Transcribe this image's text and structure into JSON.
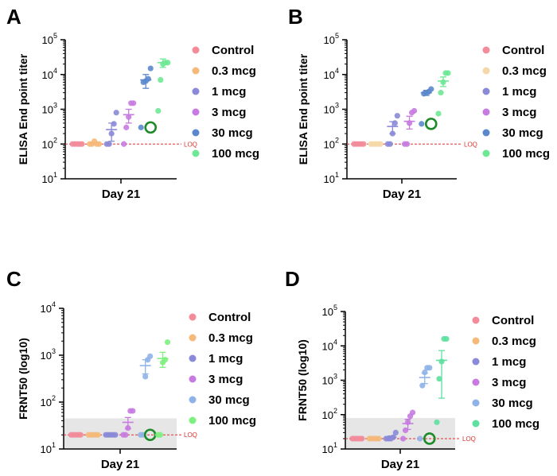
{
  "chart_data": [
    {
      "id": "A",
      "type": "scatter",
      "panel_label": "A",
      "ylabel": "ELISA End point titer",
      "xlabel": "Day 21",
      "yscale": "log",
      "ylim": [
        10,
        100000
      ],
      "y_ticks": [
        {
          "base": "10",
          "exp": "1",
          "value": 10
        },
        {
          "base": "10",
          "exp": "2",
          "value": 100
        },
        {
          "base": "10",
          "exp": "3",
          "value": 1000
        },
        {
          "base": "10",
          "exp": "4",
          "value": 10000
        },
        {
          "base": "10",
          "exp": "5",
          "value": 100000
        }
      ],
      "loq": {
        "value": 100,
        "label": "LOQ"
      },
      "shaded_region": null,
      "series": [
        {
          "name": "Control",
          "color": "#f28b9a",
          "points": [
            100,
            100,
            100,
            100,
            100
          ],
          "mean": 100,
          "sem": 0,
          "highlight": null
        },
        {
          "name": "0.3 mcg",
          "color": "#f5b97a",
          "points": [
            100,
            100,
            120,
            100,
            100
          ],
          "mean": 105,
          "sem": 5,
          "highlight": null
        },
        {
          "name": "1 mcg",
          "color": "#8a8ad8",
          "points": [
            100,
            100,
            200,
            380,
            800
          ],
          "mean": 260,
          "sem": 140,
          "highlight": null
        },
        {
          "name": "3 mcg",
          "color": "#c77be0",
          "points": [
            100,
            300,
            600,
            1500,
            1500
          ],
          "mean": 700,
          "sem": 300,
          "highlight": null
        },
        {
          "name": "30 mcg",
          "color": "#5b88cc",
          "points": [
            300,
            6000,
            6500,
            7500,
            15000
          ],
          "mean": 7000,
          "sem": 3000,
          "highlight": 300
        },
        {
          "name": "100 mcg",
          "color": "#6ee895",
          "points": [
            900,
            7000,
            20000,
            22000,
            22000
          ],
          "mean": 22000,
          "sem": 6000,
          "highlight": null
        }
      ]
    },
    {
      "id": "B",
      "type": "scatter",
      "panel_label": "B",
      "ylabel": "ELISA End point titer",
      "xlabel": "Day 21",
      "yscale": "log",
      "ylim": [
        10,
        100000
      ],
      "y_ticks": [
        {
          "base": "10",
          "exp": "1",
          "value": 10
        },
        {
          "base": "10",
          "exp": "2",
          "value": 100
        },
        {
          "base": "10",
          "exp": "3",
          "value": 1000
        },
        {
          "base": "10",
          "exp": "4",
          "value": 10000
        },
        {
          "base": "10",
          "exp": "5",
          "value": 100000
        }
      ],
      "loq": {
        "value": 100,
        "label": "LOQ"
      },
      "shaded_region": null,
      "series": [
        {
          "name": "Control",
          "color": "#f28b9a",
          "points": [
            100,
            100,
            100,
            100,
            100
          ],
          "mean": 100,
          "sem": 0,
          "highlight": null
        },
        {
          "name": "0.3 mcg",
          "color": "#f5d8a8",
          "points": [
            100,
            100,
            100,
            100,
            100
          ],
          "mean": 100,
          "sem": 0,
          "highlight": null
        },
        {
          "name": "1 mcg",
          "color": "#8a8ad8",
          "points": [
            100,
            100,
            200,
            400,
            650
          ],
          "mean": 320,
          "sem": 120,
          "highlight": null
        },
        {
          "name": "3 mcg",
          "color": "#c77be0",
          "points": [
            100,
            100,
            400,
            800,
            900
          ],
          "mean": 450,
          "sem": 180,
          "highlight": null
        },
        {
          "name": "30 mcg",
          "color": "#5b88cc",
          "points": [
            380,
            2800,
            3000,
            3200,
            3800
          ],
          "mean": 3000,
          "sem": 500,
          "highlight": 380
        },
        {
          "name": "100 mcg",
          "color": "#6ee895",
          "points": [
            750,
            3000,
            6000,
            11000,
            11000
          ],
          "mean": 6500,
          "sem": 2000,
          "highlight": null
        }
      ]
    },
    {
      "id": "C",
      "type": "scatter",
      "panel_label": "C",
      "ylabel": "FRNT50 (log10)",
      "xlabel": "Day 21",
      "yscale": "log",
      "ylim": [
        10,
        10000
      ],
      "y_ticks": [
        {
          "base": "10",
          "exp": "1",
          "value": 10
        },
        {
          "base": "10",
          "exp": "2",
          "value": 100
        },
        {
          "base": "10",
          "exp": "3",
          "value": 1000
        },
        {
          "base": "10",
          "exp": "4",
          "value": 10000
        }
      ],
      "loq": {
        "value": 20,
        "label": "LOQ"
      },
      "shaded_region": {
        "from": 10,
        "to": 45
      },
      "series": [
        {
          "name": "Control",
          "color": "#f28b9a",
          "points": [
            20,
            20,
            20,
            20,
            20
          ],
          "mean": 20,
          "sem": 0,
          "highlight": null
        },
        {
          "name": "0.3 mcg",
          "color": "#f5b97a",
          "points": [
            20,
            20,
            20,
            20,
            20
          ],
          "mean": 20,
          "sem": 0,
          "highlight": null
        },
        {
          "name": "1 mcg",
          "color": "#8a8ad8",
          "points": [
            20,
            20,
            20,
            20,
            20
          ],
          "mean": 20,
          "sem": 0,
          "highlight": null
        },
        {
          "name": "3 mcg",
          "color": "#c77be0",
          "points": [
            20,
            20,
            28,
            65,
            65
          ],
          "mean": 37,
          "sem": 10,
          "highlight": null
        },
        {
          "name": "30 mcg",
          "color": "#8fb3e8",
          "points": [
            20,
            20,
            350,
            800,
            950
          ],
          "mean": 600,
          "sem": 200,
          "highlight": 20
        },
        {
          "name": "100 mcg",
          "color": "#7ef07e",
          "points": [
            20,
            20,
            700,
            800,
            1900
          ],
          "mean": 850,
          "sem": 300,
          "highlight": null
        }
      ]
    },
    {
      "id": "D",
      "type": "scatter",
      "panel_label": "D",
      "ylabel": "FRNT50 (log10)",
      "xlabel": "Day 21",
      "yscale": "log",
      "ylim": [
        10,
        100000
      ],
      "y_ticks": [
        {
          "base": "10",
          "exp": "1",
          "value": 10
        },
        {
          "base": "10",
          "exp": "2",
          "value": 100
        },
        {
          "base": "10",
          "exp": "3",
          "value": 1000
        },
        {
          "base": "10",
          "exp": "4",
          "value": 10000
        },
        {
          "base": "10",
          "exp": "5",
          "value": 100000
        }
      ],
      "loq": {
        "value": 20,
        "label": "LOQ"
      },
      "shaded_region": {
        "from": 10,
        "to": 80
      },
      "series": [
        {
          "name": "Control",
          "color": "#f28b9a",
          "points": [
            20,
            20,
            20,
            20,
            20
          ],
          "mean": 20,
          "sem": 0,
          "highlight": null
        },
        {
          "name": "0.3 mcg",
          "color": "#f5b97a",
          "points": [
            20,
            20,
            20,
            20,
            20
          ],
          "mean": 20,
          "sem": 0,
          "highlight": null
        },
        {
          "name": "1 mcg",
          "color": "#8a8ad8",
          "points": [
            20,
            20,
            20,
            22,
            30
          ],
          "mean": 22,
          "sem": 2,
          "highlight": null
        },
        {
          "name": "3 mcg",
          "color": "#c77be0",
          "points": [
            20,
            35,
            60,
            90,
            115
          ],
          "mean": 55,
          "sem": 18,
          "highlight": null
        },
        {
          "name": "30 mcg",
          "color": "#8fb3e8",
          "points": [
            20,
            700,
            1700,
            2300,
            2300
          ],
          "mean": 1200,
          "sem": 400,
          "highlight": 20
        },
        {
          "name": "100 mcg",
          "color": "#5ee0a0",
          "points": [
            60,
            1100,
            3500,
            16000,
            16000
          ],
          "mean": 3800,
          "sem": 3500,
          "highlight": null
        }
      ]
    }
  ]
}
